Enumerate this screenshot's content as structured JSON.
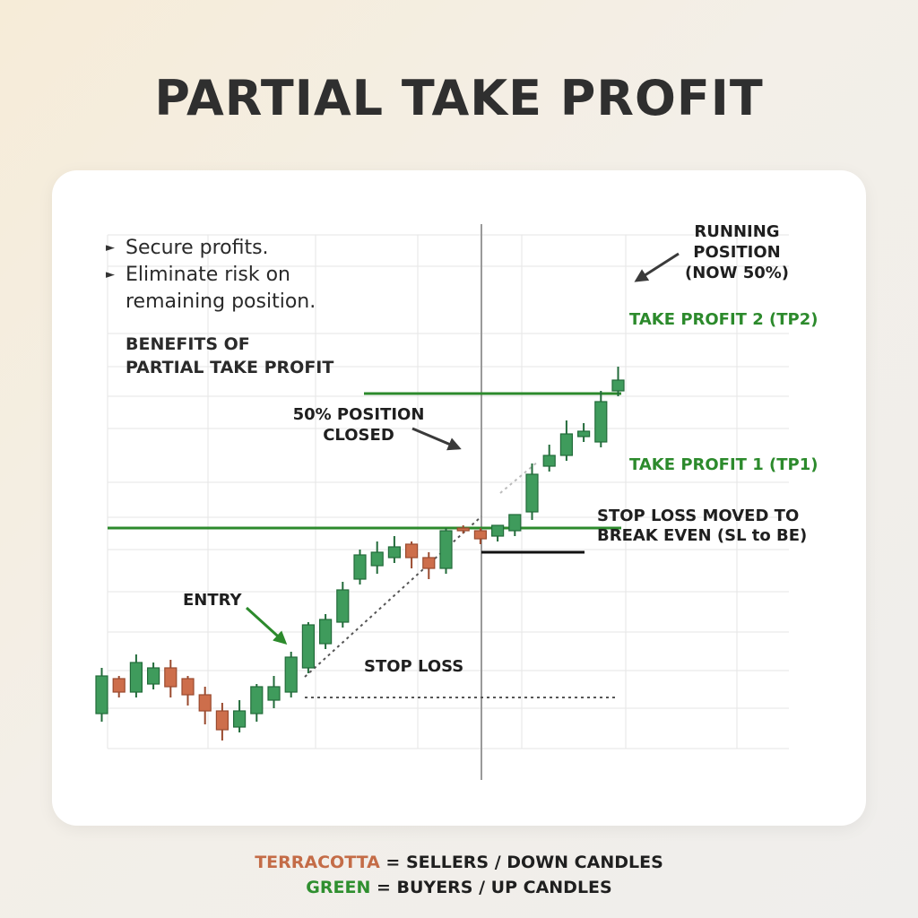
{
  "title": "PARTIAL TAKE PROFIT",
  "bullets": [
    {
      "icon": "triangle-right-icon",
      "text": "Secure profits."
    },
    {
      "icon": "triangle-right-icon",
      "text": "Eliminate risk on\nremaining position."
    }
  ],
  "benefits_heading": "BENEFITS OF\nPARTIAL TAKE PROFIT",
  "legend": {
    "sellers_word": "TERRACOTTA",
    "sellers_rest": " = SELLERS / DOWN CANDLES",
    "buyers_word": "GREEN",
    "buyers_rest": " = BUYERS / UP CANDLES"
  },
  "colors": {
    "up": "#3f9b5c",
    "down": "#cd6e4b",
    "level": "#2c8a2c",
    "text": "#1f1f1f"
  },
  "chart_data": {
    "type": "candlestick",
    "candles": [
      {
        "open": 8,
        "high": 25,
        "low": 5,
        "close": 22
      },
      {
        "open": 21,
        "high": 22,
        "low": 14,
        "close": 16
      },
      {
        "open": 16,
        "high": 30,
        "low": 14,
        "close": 27
      },
      {
        "open": 19,
        "high": 27,
        "low": 17,
        "close": 25
      },
      {
        "open": 25,
        "high": 28,
        "low": 14,
        "close": 18
      },
      {
        "open": 21,
        "high": 22,
        "low": 11,
        "close": 15
      },
      {
        "open": 15,
        "high": 18,
        "low": 4,
        "close": 9
      },
      {
        "open": 9,
        "high": 12,
        "low": -2,
        "close": 2
      },
      {
        "open": 3,
        "high": 13,
        "low": 1,
        "close": 9
      },
      {
        "open": 8,
        "high": 19,
        "low": 5,
        "close": 18
      },
      {
        "open": 13,
        "high": 22,
        "low": 10,
        "close": 18
      },
      {
        "open": 16,
        "high": 31,
        "low": 14,
        "close": 29
      },
      {
        "open": 25,
        "high": 42,
        "low": 23,
        "close": 41
      },
      {
        "open": 34,
        "high": 45,
        "low": 32,
        "close": 43
      },
      {
        "open": 42,
        "high": 57,
        "low": 40,
        "close": 54
      },
      {
        "open": 58,
        "high": 69,
        "low": 56,
        "close": 67
      },
      {
        "open": 63,
        "high": 72,
        "low": 60,
        "close": 68
      },
      {
        "open": 66,
        "high": 74,
        "low": 64,
        "close": 70
      },
      {
        "open": 71,
        "high": 72,
        "low": 62,
        "close": 66
      },
      {
        "open": 66,
        "high": 68,
        "low": 58,
        "close": 62
      },
      {
        "open": 62,
        "high": 77,
        "low": 60,
        "close": 76
      },
      {
        "open": 77,
        "high": 78,
        "low": 75,
        "close": 76
      },
      {
        "open": 76,
        "high": 77,
        "low": 71,
        "close": 73
      },
      {
        "open": 74,
        "high": 78,
        "low": 72,
        "close": 78
      },
      {
        "open": 76,
        "high": 82,
        "low": 74,
        "close": 82
      },
      {
        "open": 83,
        "high": 101,
        "low": 80,
        "close": 97
      },
      {
        "open": 100,
        "high": 108,
        "low": 98,
        "close": 104
      },
      {
        "open": 104,
        "high": 117,
        "low": 102,
        "close": 112
      },
      {
        "open": 111,
        "high": 116,
        "low": 109,
        "close": 113
      },
      {
        "open": 109,
        "high": 128,
        "low": 107,
        "close": 124
      },
      {
        "open": 128,
        "high": 137,
        "low": 126,
        "close": 132
      }
    ],
    "levels": [
      {
        "name": "take_profit_2",
        "label": "TAKE PROFIT 2 (TP2)",
        "value": 127
      },
      {
        "name": "take_profit_1",
        "label": "TAKE PROFIT 1 (TP1)",
        "value": 77
      },
      {
        "name": "stop_loss_moved",
        "label": "STOP LOSS MOVED TO\nBREAK EVEN (SL to BE)",
        "value": 68
      },
      {
        "name": "stop_loss",
        "label": "STOP LOSS",
        "value": 14
      }
    ],
    "annotations": [
      {
        "name": "entry",
        "text": "ENTRY"
      },
      {
        "name": "position-closed",
        "text": "50% POSITION\nCLOSED"
      },
      {
        "name": "running-position",
        "text": "RUNNING\nPOSITION\n(NOW 50%)"
      }
    ],
    "grid": true
  }
}
